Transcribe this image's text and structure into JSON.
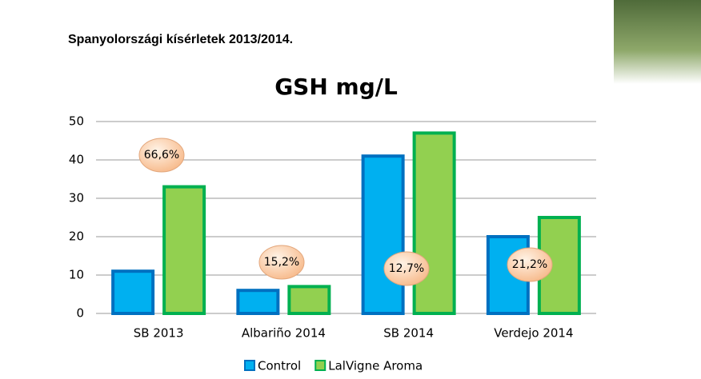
{
  "heading": "Spanyolországi kísérletek 2013/2014.",
  "chart_data": {
    "type": "bar",
    "title": "GSH mg/L",
    "categories": [
      "SB 2013",
      "Albariño 2014",
      "SB 2014",
      "Verdejo 2014"
    ],
    "series": [
      {
        "name": "Control",
        "color": "#00b0f0",
        "values": [
          11,
          6,
          41,
          20
        ]
      },
      {
        "name": "LalVigne Aroma",
        "color": "#92d050",
        "values": [
          33,
          7,
          47,
          25
        ]
      }
    ],
    "annotations": [
      "66,6%",
      "15,2%",
      "12,7%",
      "21,2%"
    ],
    "ylim": [
      0,
      50
    ],
    "yticks": [
      0,
      10,
      20,
      30,
      40,
      50
    ],
    "grid": true,
    "legend": "bottom"
  }
}
